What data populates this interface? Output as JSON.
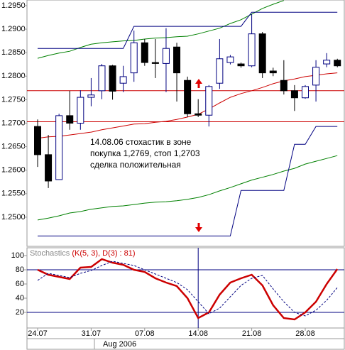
{
  "chart_data": [
    {
      "type": "candlestick",
      "open": [
        1.2693,
        1.2633,
        1.258,
        1.2716,
        1.27,
        1.2755,
        1.2769,
        1.2822,
        1.2785,
        1.2807,
        1.2871,
        1.2829,
        1.2827,
        1.2862,
        1.2791,
        1.272,
        1.2717,
        1.2785,
        1.2829,
        1.2826,
        1.2822,
        1.289,
        1.2811,
        1.2791,
        1.2769,
        1.2754,
        1.2781,
        1.2826,
        1.2834
      ],
      "high": [
        1.2708,
        1.2675,
        1.272,
        1.2769,
        1.277,
        1.2796,
        1.2826,
        1.2824,
        1.2822,
        1.2897,
        1.2879,
        1.2879,
        1.2902,
        1.2871,
        1.2799,
        1.2751,
        1.2781,
        1.2879,
        1.2845,
        1.2829,
        1.2932,
        1.2894,
        1.2818,
        1.2834,
        1.2781,
        1.2781,
        1.2834,
        1.2849,
        1.2837
      ],
      "low": [
        1.2607,
        1.2562,
        1.258,
        1.2686,
        1.2686,
        1.2736,
        1.2751,
        1.275,
        1.2766,
        1.2788,
        1.2822,
        1.2796,
        1.2766,
        1.2746,
        1.2713,
        1.2713,
        1.2693,
        1.2773,
        1.2825,
        1.2818,
        1.2819,
        1.2796,
        1.28,
        1.2761,
        1.2726,
        1.2752,
        1.2746,
        1.2819,
        1.2819
      ],
      "close": [
        1.2633,
        1.2577,
        1.2716,
        1.27,
        1.2755,
        1.276,
        1.2822,
        1.2768,
        1.2799,
        1.2871,
        1.2829,
        1.2827,
        1.2859,
        1.2807,
        1.272,
        1.2717,
        1.2778,
        1.2837,
        1.2841,
        1.2822,
        1.289,
        1.2807,
        1.2807,
        1.2769,
        1.2754,
        1.2778,
        1.2819,
        1.2834,
        1.2822
      ],
      "overlays": [
        {
          "color": "#008000",
          "values": [
            1.2838,
            1.2844,
            1.2849,
            1.2853,
            1.2861,
            1.2868,
            1.2871,
            1.2873,
            1.2875,
            1.2876,
            1.2879,
            1.2881,
            1.2882,
            1.2884,
            1.2885,
            1.289,
            1.2896,
            1.2902,
            1.2912,
            1.292,
            1.2932,
            1.2944,
            1.2953,
            1.2961,
            null,
            null,
            null,
            null,
            null
          ]
        },
        {
          "color": "#008000",
          "values": [
            1.2494,
            1.2498,
            1.2503,
            1.2509,
            1.2512,
            1.2517,
            1.252,
            1.2523,
            1.2524,
            1.2527,
            1.253,
            1.2532,
            1.2533,
            1.2535,
            1.2538,
            1.2542,
            1.2548,
            1.2556,
            1.2563,
            1.2571,
            1.2579,
            1.2585,
            1.2591,
            1.2598,
            1.2604,
            1.2613,
            1.2619,
            1.2625,
            1.2631
          ]
        },
        {
          "color": "#cc0000",
          "values": [
            1.2668,
            1.2671,
            1.2672,
            1.2675,
            1.2678,
            1.2681,
            1.2686,
            1.269,
            1.2694,
            1.2698,
            1.2699,
            1.2702,
            1.2704,
            1.2708,
            1.2713,
            1.2719,
            1.273,
            1.2743,
            1.2755,
            1.2763,
            1.2769,
            1.2776,
            1.2784,
            1.279,
            1.2794,
            1.2799,
            1.2802,
            1.2805,
            1.2807
          ]
        },
        {
          "color": "#000080",
          "values": [
            1.2859,
            1.2859,
            1.2859,
            1.2859,
            1.2859,
            1.2859,
            1.2859,
            1.2859,
            1.2859,
            1.2906,
            1.2906,
            1.2906,
            1.2906,
            1.2906,
            1.2906,
            1.2906,
            1.2906,
            1.2906,
            1.2906,
            1.2906,
            1.2936,
            1.2936,
            1.2936,
            1.2936,
            1.2936,
            1.2936,
            1.2936,
            1.2936,
            1.2936
          ]
        },
        {
          "color": "#000080",
          "values": [
            1.246,
            1.246,
            1.246,
            1.246,
            1.246,
            1.246,
            1.246,
            1.246,
            1.246,
            1.246,
            1.246,
            1.246,
            1.246,
            1.246,
            1.246,
            1.246,
            1.246,
            1.246,
            1.246,
            1.2557,
            1.2557,
            1.2557,
            1.2557,
            1.2557,
            1.2655,
            1.2655,
            1.2693,
            1.2693,
            1.2693
          ]
        }
      ],
      "hlines": [
        {
          "value": 1.2769,
          "color": "#cc0000"
        },
        {
          "value": 1.2703,
          "color": "#cc0000"
        }
      ],
      "annotations": [
        "14.08.06 стохастик в зоне",
        "покупка 1,2769, стоп 1,2703",
        "сделка положительная"
      ],
      "ylim": [
        1.2438,
        1.2962
      ],
      "yticks": [
        {
          "value": 1.25,
          "label": "1.2500"
        },
        {
          "value": 1.255,
          "label": "1.2550"
        },
        {
          "value": 1.26,
          "label": "1.2600"
        },
        {
          "value": 1.265,
          "label": "1.2650"
        },
        {
          "value": 1.27,
          "label": "1.2700"
        },
        {
          "value": 1.275,
          "label": "1.2750"
        },
        {
          "value": 1.28,
          "label": "1.2800"
        },
        {
          "value": 1.285,
          "label": "1.2850"
        },
        {
          "value": 1.29,
          "label": "1.2900"
        },
        {
          "value": 1.295,
          "label": "1.2950"
        }
      ]
    },
    {
      "type": "line",
      "title": "Stochastics",
      "subtitle": "(K(5, 3), D(3) : 81)",
      "categories": [
        "24.07",
        null,
        null,
        null,
        null,
        "31.07",
        null,
        null,
        null,
        null,
        "07.08",
        null,
        null,
        null,
        null,
        "14.08",
        null,
        null,
        null,
        null,
        "21.08",
        null,
        null,
        null,
        null,
        "28.08",
        null,
        null,
        null
      ],
      "period_label": "Aug 2006",
      "vline": "14.08",
      "series": [
        {
          "color": "#cc0000",
          "values": [
            80,
            73,
            70,
            67,
            83,
            84,
            95,
            90,
            87,
            80,
            77,
            68,
            62,
            57,
            40,
            12,
            20,
            45,
            62,
            68,
            73,
            58,
            30,
            12,
            10,
            20,
            35,
            60,
            81
          ]
        },
        {
          "color": "#000080",
          "dashed": true,
          "values": [
            65,
            75,
            72,
            69,
            75,
            79,
            86,
            92,
            89,
            86,
            80,
            74,
            68,
            62,
            52,
            35,
            18,
            26,
            42,
            58,
            68,
            72,
            53,
            35,
            20,
            15,
            23,
            37,
            55
          ]
        }
      ],
      "hlines": [
        {
          "value": 80,
          "color": "#000080"
        },
        {
          "value": 20,
          "color": "#000080"
        }
      ],
      "ylim": [
        0,
        110
      ],
      "yticks": [
        20,
        40,
        60,
        80,
        100
      ]
    }
  ]
}
